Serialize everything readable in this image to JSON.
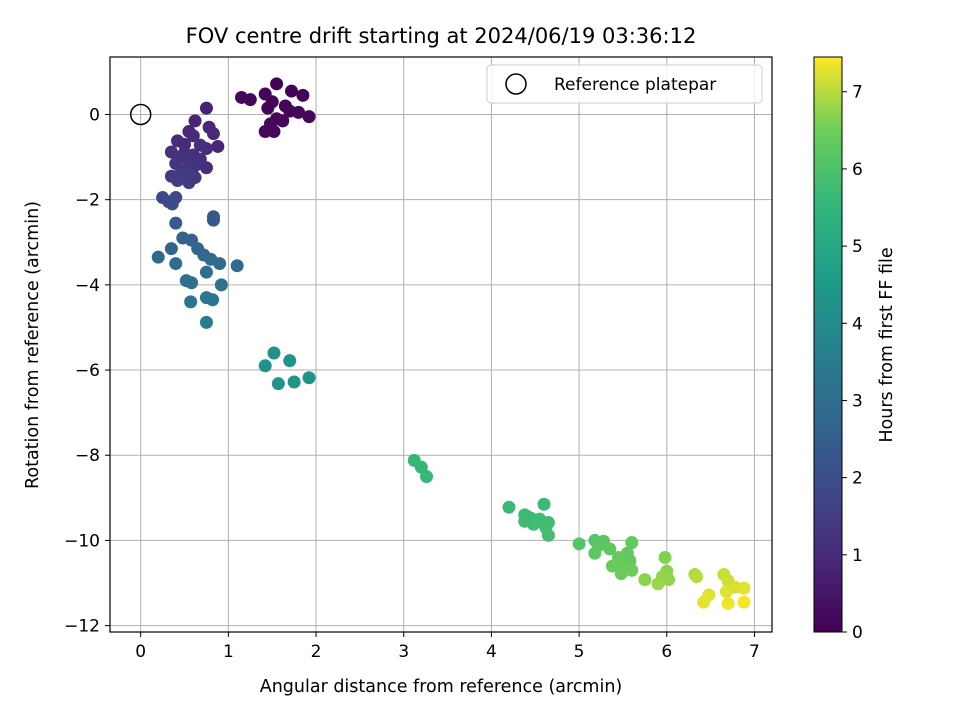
{
  "chart_data": {
    "type": "scatter",
    "title": "FOV centre drift starting at 2024/06/19 03:36:12",
    "xlabel": "Angular distance from reference (arcmin)",
    "ylabel": "Rotation from reference (arcmin)",
    "xlim": [
      -0.35,
      7.2
    ],
    "ylim": [
      -12.15,
      1.35
    ],
    "xticks": [
      0,
      1,
      2,
      3,
      4,
      5,
      6,
      7
    ],
    "yticks": [
      0,
      -2,
      -4,
      -6,
      -8,
      -10,
      -12
    ],
    "grid": true,
    "legend": {
      "placement": "top-right",
      "entries": [
        "Reference platepar"
      ]
    },
    "reference_point": {
      "x": 0,
      "y": 0
    },
    "colorbar": {
      "label": "Hours from first FF file",
      "range": [
        0,
        7.45
      ],
      "ticks": [
        0,
        1,
        2,
        3,
        4,
        5,
        6,
        7
      ],
      "colormap": "viridis"
    },
    "points": [
      {
        "x": 1.55,
        "y": 0.72,
        "c": 0.05
      },
      {
        "x": 1.72,
        "y": 0.55,
        "c": 0.05
      },
      {
        "x": 1.42,
        "y": 0.48,
        "c": 0.08
      },
      {
        "x": 1.85,
        "y": 0.45,
        "c": 0.06
      },
      {
        "x": 1.15,
        "y": 0.4,
        "c": 0.12
      },
      {
        "x": 1.25,
        "y": 0.35,
        "c": 0.12
      },
      {
        "x": 1.5,
        "y": 0.3,
        "c": 0.07
      },
      {
        "x": 1.65,
        "y": 0.2,
        "c": 0.1
      },
      {
        "x": 1.45,
        "y": 0.15,
        "c": 0.1
      },
      {
        "x": 1.7,
        "y": 0.08,
        "c": 0.1
      },
      {
        "x": 1.8,
        "y": 0.05,
        "c": 0.14
      },
      {
        "x": 1.92,
        "y": -0.05,
        "c": 0.12
      },
      {
        "x": 1.55,
        "y": -0.1,
        "c": 0.15
      },
      {
        "x": 1.62,
        "y": -0.15,
        "c": 0.16
      },
      {
        "x": 1.48,
        "y": -0.22,
        "c": 0.16
      },
      {
        "x": 1.42,
        "y": -0.4,
        "c": 0.18
      },
      {
        "x": 1.52,
        "y": -0.4,
        "c": 0.17
      },
      {
        "x": 0.75,
        "y": 0.15,
        "c": 0.8
      },
      {
        "x": 0.62,
        "y": -0.15,
        "c": 0.9
      },
      {
        "x": 0.78,
        "y": -0.3,
        "c": 0.9
      },
      {
        "x": 0.55,
        "y": -0.4,
        "c": 0.95
      },
      {
        "x": 0.83,
        "y": -0.45,
        "c": 0.95
      },
      {
        "x": 0.6,
        "y": -0.5,
        "c": 1.0
      },
      {
        "x": 0.42,
        "y": -0.62,
        "c": 1.05
      },
      {
        "x": 0.5,
        "y": -0.7,
        "c": 1.0
      },
      {
        "x": 0.68,
        "y": -0.72,
        "c": 1.1
      },
      {
        "x": 0.88,
        "y": -0.75,
        "c": 0.9
      },
      {
        "x": 0.75,
        "y": -0.8,
        "c": 1.1
      },
      {
        "x": 0.35,
        "y": -0.88,
        "c": 1.2
      },
      {
        "x": 0.5,
        "y": -0.9,
        "c": 1.1
      },
      {
        "x": 0.6,
        "y": -0.95,
        "c": 1.15
      },
      {
        "x": 0.45,
        "y": -1.0,
        "c": 1.2
      },
      {
        "x": 0.68,
        "y": -1.05,
        "c": 1.2
      },
      {
        "x": 0.55,
        "y": -1.1,
        "c": 1.25
      },
      {
        "x": 0.4,
        "y": -1.15,
        "c": 1.3
      },
      {
        "x": 0.62,
        "y": -1.2,
        "c": 1.25
      },
      {
        "x": 0.75,
        "y": -1.25,
        "c": 1.1
      },
      {
        "x": 0.5,
        "y": -1.3,
        "c": 1.35
      },
      {
        "x": 0.45,
        "y": -1.4,
        "c": 1.4
      },
      {
        "x": 0.35,
        "y": -1.45,
        "c": 1.4
      },
      {
        "x": 0.55,
        "y": -1.45,
        "c": 1.45
      },
      {
        "x": 0.62,
        "y": -1.48,
        "c": 1.4
      },
      {
        "x": 0.42,
        "y": -1.55,
        "c": 1.5
      },
      {
        "x": 0.55,
        "y": -1.6,
        "c": 1.5
      },
      {
        "x": 0.25,
        "y": -1.95,
        "c": 1.8
      },
      {
        "x": 0.4,
        "y": -1.95,
        "c": 1.85
      },
      {
        "x": 0.32,
        "y": -2.05,
        "c": 1.9
      },
      {
        "x": 0.36,
        "y": -2.1,
        "c": 1.95
      },
      {
        "x": 0.83,
        "y": -2.4,
        "c": 2.3
      },
      {
        "x": 0.83,
        "y": -2.48,
        "c": 2.3
      },
      {
        "x": 0.4,
        "y": -2.55,
        "c": 2.4
      },
      {
        "x": 0.48,
        "y": -2.9,
        "c": 2.6
      },
      {
        "x": 0.58,
        "y": -2.95,
        "c": 2.6
      },
      {
        "x": 0.35,
        "y": -3.15,
        "c": 2.7
      },
      {
        "x": 0.65,
        "y": -3.15,
        "c": 2.7
      },
      {
        "x": 0.2,
        "y": -3.35,
        "c": 2.8
      },
      {
        "x": 0.72,
        "y": -3.3,
        "c": 2.8
      },
      {
        "x": 0.8,
        "y": -3.4,
        "c": 2.85
      },
      {
        "x": 0.4,
        "y": -3.5,
        "c": 2.9
      },
      {
        "x": 0.9,
        "y": -3.5,
        "c": 2.9
      },
      {
        "x": 1.1,
        "y": -3.55,
        "c": 2.9
      },
      {
        "x": 0.75,
        "y": -3.7,
        "c": 3.0
      },
      {
        "x": 0.52,
        "y": -3.9,
        "c": 3.1
      },
      {
        "x": 0.58,
        "y": -3.95,
        "c": 3.1
      },
      {
        "x": 0.92,
        "y": -4.0,
        "c": 3.1
      },
      {
        "x": 0.75,
        "y": -4.3,
        "c": 3.25
      },
      {
        "x": 0.82,
        "y": -4.35,
        "c": 3.3
      },
      {
        "x": 0.57,
        "y": -4.4,
        "c": 3.3
      },
      {
        "x": 0.75,
        "y": -4.88,
        "c": 3.5
      },
      {
        "x": 1.52,
        "y": -5.6,
        "c": 4.2
      },
      {
        "x": 1.7,
        "y": -5.78,
        "c": 4.25
      },
      {
        "x": 1.42,
        "y": -5.9,
        "c": 4.3
      },
      {
        "x": 1.92,
        "y": -6.18,
        "c": 4.3
      },
      {
        "x": 1.75,
        "y": -6.28,
        "c": 4.35
      },
      {
        "x": 1.57,
        "y": -6.32,
        "c": 4.35
      },
      {
        "x": 3.12,
        "y": -8.12,
        "c": 5.55
      },
      {
        "x": 3.2,
        "y": -8.28,
        "c": 5.55
      },
      {
        "x": 3.26,
        "y": -8.5,
        "c": 5.6
      },
      {
        "x": 4.2,
        "y": -9.22,
        "c": 5.65
      },
      {
        "x": 4.38,
        "y": -9.4,
        "c": 5.7
      },
      {
        "x": 4.6,
        "y": -9.15,
        "c": 5.7
      },
      {
        "x": 4.45,
        "y": -9.48,
        "c": 5.75
      },
      {
        "x": 4.55,
        "y": -9.5,
        "c": 5.75
      },
      {
        "x": 4.38,
        "y": -9.55,
        "c": 5.8
      },
      {
        "x": 4.65,
        "y": -9.58,
        "c": 5.75
      },
      {
        "x": 4.48,
        "y": -9.62,
        "c": 5.8
      },
      {
        "x": 4.62,
        "y": -9.7,
        "c": 5.8
      },
      {
        "x": 4.65,
        "y": -9.88,
        "c": 5.85
      },
      {
        "x": 4.42,
        "y": -9.45,
        "c": 5.7
      },
      {
        "x": 5.0,
        "y": -10.08,
        "c": 6.1
      },
      {
        "x": 5.18,
        "y": -10.0,
        "c": 6.15
      },
      {
        "x": 5.28,
        "y": -10.02,
        "c": 6.2
      },
      {
        "x": 5.22,
        "y": -10.12,
        "c": 6.2
      },
      {
        "x": 5.35,
        "y": -10.2,
        "c": 6.25
      },
      {
        "x": 5.6,
        "y": -10.05,
        "c": 6.3
      },
      {
        "x": 5.18,
        "y": -10.3,
        "c": 6.25
      },
      {
        "x": 5.55,
        "y": -10.3,
        "c": 6.3
      },
      {
        "x": 5.45,
        "y": -10.4,
        "c": 6.35
      },
      {
        "x": 5.58,
        "y": -10.48,
        "c": 6.35
      },
      {
        "x": 5.38,
        "y": -10.6,
        "c": 6.4
      },
      {
        "x": 5.5,
        "y": -10.65,
        "c": 6.4
      },
      {
        "x": 5.6,
        "y": -10.7,
        "c": 6.45
      },
      {
        "x": 5.48,
        "y": -10.78,
        "c": 6.45
      },
      {
        "x": 5.98,
        "y": -10.4,
        "c": 6.65
      },
      {
        "x": 6.0,
        "y": -10.72,
        "c": 6.7
      },
      {
        "x": 5.95,
        "y": -10.85,
        "c": 6.75
      },
      {
        "x": 5.75,
        "y": -10.92,
        "c": 6.7
      },
      {
        "x": 6.02,
        "y": -10.92,
        "c": 6.75
      },
      {
        "x": 5.9,
        "y": -11.02,
        "c": 6.8
      },
      {
        "x": 6.32,
        "y": -10.8,
        "c": 6.95
      },
      {
        "x": 6.34,
        "y": -10.85,
        "c": 7.0
      },
      {
        "x": 6.65,
        "y": -10.8,
        "c": 7.1
      },
      {
        "x": 6.7,
        "y": -10.95,
        "c": 7.15
      },
      {
        "x": 6.78,
        "y": -11.1,
        "c": 7.2
      },
      {
        "x": 6.68,
        "y": -11.2,
        "c": 7.25
      },
      {
        "x": 6.88,
        "y": -11.12,
        "c": 7.25
      },
      {
        "x": 6.48,
        "y": -11.28,
        "c": 7.25
      },
      {
        "x": 6.42,
        "y": -11.45,
        "c": 7.3
      },
      {
        "x": 6.7,
        "y": -11.48,
        "c": 7.35
      },
      {
        "x": 6.88,
        "y": -11.45,
        "c": 7.4
      }
    ]
  }
}
